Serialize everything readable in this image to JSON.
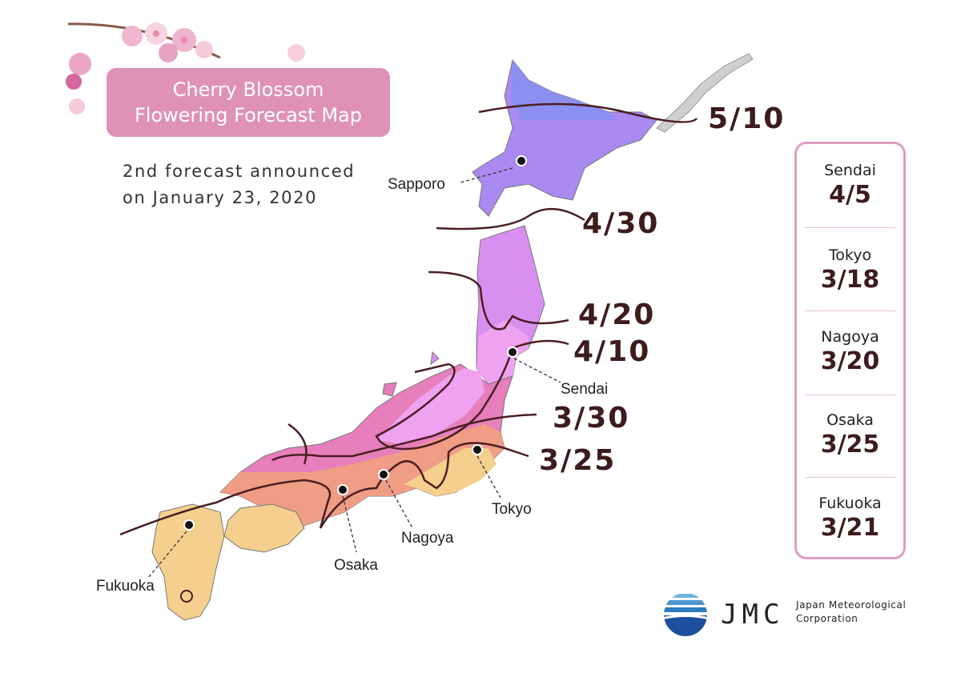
{
  "title": {
    "line1": "Cherry Blossom",
    "line2": "Flowering Forecast Map"
  },
  "subtitle": {
    "line1": "2nd forecast announced",
    "line2": "on January 23, 2020"
  },
  "map_labels": {
    "sapporo": "Sapporo",
    "sendai": "Sendai",
    "tokyo": "Tokyo",
    "nagoya": "Nagoya",
    "osaka": "Osaka",
    "fukuoka": "Fukuoka"
  },
  "isolines": [
    "5/10",
    "4/30",
    "4/20",
    "4/10",
    "3/30",
    "3/25"
  ],
  "forecast_list": [
    {
      "city": "Sendai",
      "date": "4/5"
    },
    {
      "city": "Tokyo",
      "date": "3/18"
    },
    {
      "city": "Nagoya",
      "date": "3/20"
    },
    {
      "city": "Osaka",
      "date": "3/25"
    },
    {
      "city": "Fukuoka",
      "date": "3/21"
    }
  ],
  "logo": {
    "letters": "JMC",
    "name_line1": "Japan Meteorological",
    "name_line2": "Corporation"
  },
  "colors": {
    "zone_5_10": "#8a8ff0",
    "zone_4_30": "#a98af0",
    "zone_4_20": "#d890f0",
    "zone_4_10": "#efa2ef",
    "zone_3_30": "#e67fbb",
    "zone_3_25": "#ef9d85",
    "zone_early": "#f5cf8e",
    "title_bg": "#df92b5",
    "isoline": "#4a1e22",
    "label_dark": "#3d1c1c"
  }
}
